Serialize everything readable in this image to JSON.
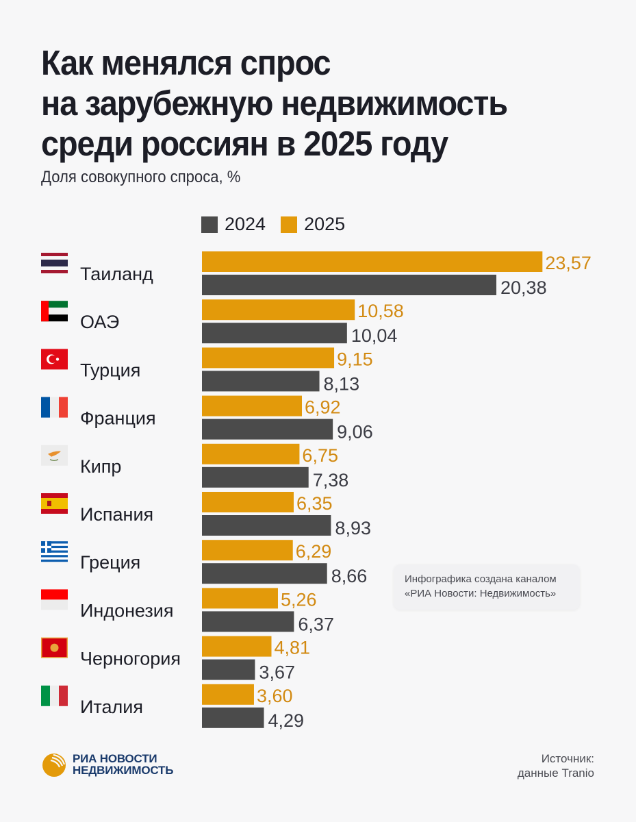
{
  "header": {
    "title_lines": [
      "Как менялся спрос",
      "на зарубежную недвижимость",
      "среди россиян в 2025 году"
    ],
    "subtitle": "Доля совокупного спроса, %"
  },
  "colors": {
    "y2024": "#4b4b4b",
    "y2025": "#e39a0a",
    "text": "#1c1d26"
  },
  "chart_data": {
    "type": "bar",
    "orientation": "horizontal",
    "title": "Как менялся спрос на зарубежную недвижимость среди россиян в 2025 году",
    "subtitle": "Доля совокупного спроса, %",
    "xlabel": "",
    "ylabel": "",
    "xlim": [
      0,
      24
    ],
    "grid": false,
    "legend_position": "top",
    "categories": [
      "Таиланд",
      "ОАЭ",
      "Турция",
      "Франция",
      "Кипр",
      "Испания",
      "Греция",
      "Индонезия",
      "Черногория",
      "Италия"
    ],
    "flags": [
      "thailand-flag-icon",
      "uae-flag-icon",
      "turkey-flag-icon",
      "france-flag-icon",
      "cyprus-flag-icon",
      "spain-flag-icon",
      "greece-flag-icon",
      "indonesia-flag-icon",
      "montenegro-flag-icon",
      "italy-flag-icon"
    ],
    "series": [
      {
        "name": "2025",
        "color": "#e39a0a",
        "values": [
          23.57,
          10.58,
          9.15,
          6.92,
          6.75,
          6.35,
          6.29,
          5.26,
          4.81,
          3.6
        ],
        "labels": [
          "23,57",
          "10,58",
          "9,15",
          "6,92",
          "6,75",
          "6,35",
          "6,29",
          "5,26",
          "4,81",
          "3,60"
        ]
      },
      {
        "name": "2024",
        "color": "#4b4b4b",
        "values": [
          20.38,
          10.04,
          8.13,
          9.06,
          7.38,
          8.93,
          8.66,
          6.37,
          3.67,
          4.29
        ],
        "labels": [
          "20,38",
          "10,04",
          "8,13",
          "9,06",
          "7,38",
          "8,93",
          "8,66",
          "6,37",
          "3,67",
          "4,29"
        ]
      }
    ]
  },
  "legend": [
    {
      "label": "2024",
      "color": "#4b4b4b"
    },
    {
      "label": "2025",
      "color": "#e39a0a"
    }
  ],
  "info_box": {
    "line1": "Инфографика создана каналом",
    "line2": "«РИА Новости: Недвижимость»"
  },
  "logo": {
    "line1": "РИА НОВОСТИ",
    "line2": "НЕДВИЖИМОСТЬ"
  },
  "source": {
    "line1": "Источник:",
    "line2": "данные Tranio"
  }
}
